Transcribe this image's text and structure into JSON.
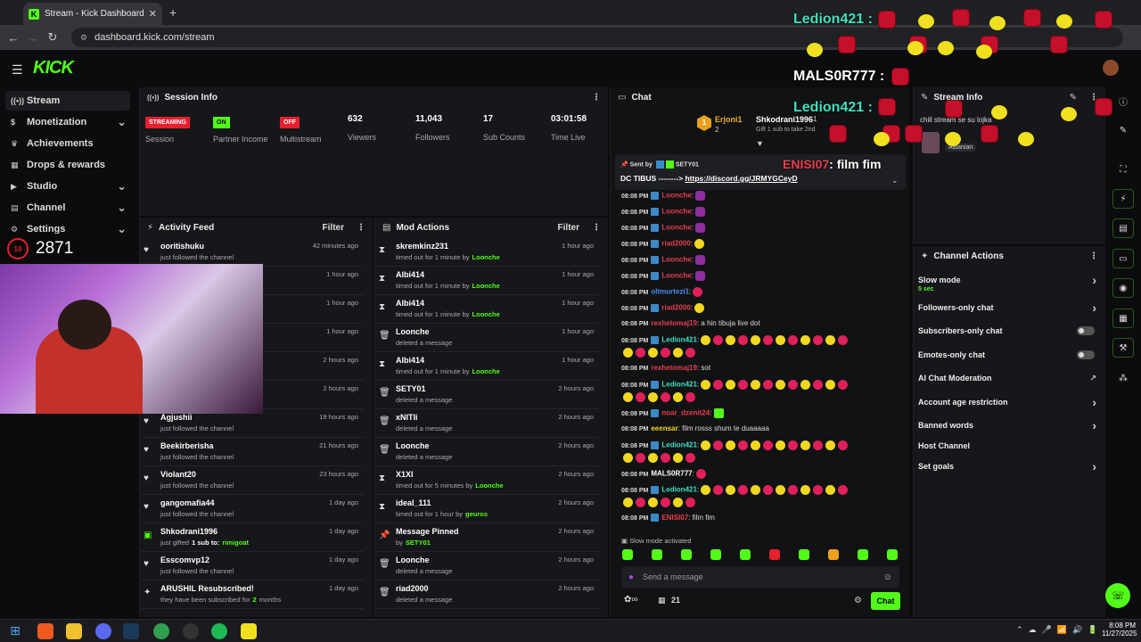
{
  "browser": {
    "tab_title": "Stream - Kick Dashboard",
    "url": "dashboard.kick.com/stream"
  },
  "header": {
    "logo": "KICK"
  },
  "sidebar": {
    "items": [
      {
        "label": "Stream",
        "icon": "broadcast-icon",
        "active": true
      },
      {
        "label": "Monetization",
        "icon": "dollar-icon",
        "chevron": true
      },
      {
        "label": "Achievements",
        "icon": "trophy-icon"
      },
      {
        "label": "Drops & rewards",
        "icon": "gift-icon"
      },
      {
        "label": "Studio",
        "icon": "video-icon",
        "chevron": true
      },
      {
        "label": "Channel",
        "icon": "channel-icon",
        "chevron": true
      },
      {
        "label": "Settings",
        "icon": "gear-icon",
        "chevron": true
      }
    ]
  },
  "viewer_overlay": {
    "count": "2871",
    "badge": "10"
  },
  "session_info": {
    "title": "Session Info",
    "stats": [
      {
        "badge": "STREAMING",
        "badge_color": "#e6202e",
        "label": "Session"
      },
      {
        "badge": "ON",
        "badge_color": "#53fc18",
        "label": "Partner Income"
      },
      {
        "badge": "OFF",
        "badge_color": "#e6202e",
        "label": "Multistream"
      },
      {
        "value": "632",
        "label": "Viewers"
      },
      {
        "value": "11,043",
        "label": "Followers"
      },
      {
        "value": "17",
        "label": "Sub Counts"
      },
      {
        "value": "03:01:58",
        "label": "Time Live"
      }
    ]
  },
  "activity_feed": {
    "title": "Activity Feed",
    "filter": "Filter",
    "rows": [
      {
        "name": "ooritishuku",
        "sub": "just followed the channel",
        "time": "42 minutes ago",
        "icon": "heart-icon"
      },
      {
        "name": "",
        "sub": "",
        "time": "1 hour ago",
        "icon": "heart-icon"
      },
      {
        "name": "",
        "sub": "",
        "time": "1 hour ago",
        "icon": "heart-icon"
      },
      {
        "name": "",
        "sub": "",
        "time": "1 hour ago",
        "icon": "heart-icon"
      },
      {
        "name": "",
        "sub": "",
        "time": "2 hours ago",
        "icon": "heart-icon"
      },
      {
        "name": "",
        "sub": "",
        "time": "2 hours ago",
        "icon": "heart-icon"
      },
      {
        "name": "Agjushii",
        "sub": "just followed the channel",
        "time": "19 hours ago",
        "icon": "heart-icon"
      },
      {
        "name": "Beekirberisha",
        "sub": "just followed the channel",
        "time": "21 hours ago",
        "icon": "heart-icon"
      },
      {
        "name": "Violant20",
        "sub": "just followed the channel",
        "time": "23 hours ago",
        "icon": "heart-icon"
      },
      {
        "name": "gangomafia44",
        "sub": "just followed the channel",
        "time": "1 day ago",
        "icon": "heart-icon"
      },
      {
        "name": "Shkodrani1996",
        "sub": "just gifted",
        "sub_extra": "1 sub to:",
        "sub_target": "rimigoat",
        "time": "1 day ago",
        "icon": "gift-icon"
      },
      {
        "name": "Esscomvp12",
        "sub": "just followed the channel",
        "time": "1 day ago",
        "icon": "heart-icon"
      },
      {
        "name": "ARUSHIL Resubscribed!",
        "sub": "they have been subscribed for",
        "sub_extra": "2",
        "sub_tail": "months",
        "time": "1 day ago",
        "icon": "sparkle-icon"
      }
    ]
  },
  "mod_actions": {
    "title": "Mod Actions",
    "filter": "Filter",
    "rows": [
      {
        "name": "skremkinz231",
        "sub": "timed out for 1 minute by",
        "by": "Loonche",
        "time": "1 hour ago",
        "icon": "hourglass-icon"
      },
      {
        "name": "Albi414",
        "sub": "timed out for 1 minute by",
        "by": "Loonche",
        "time": "1 hour ago",
        "icon": "hourglass-icon"
      },
      {
        "name": "Albi414",
        "sub": "timed out for 1 minute by",
        "by": "Loonche",
        "time": "1 hour ago",
        "icon": "hourglass-icon"
      },
      {
        "name": "Loonche",
        "sub": "deleted a message",
        "by": "",
        "time": "1 hour ago",
        "icon": "trash-icon"
      },
      {
        "name": "Albi414",
        "sub": "timed out for 1 minute by",
        "by": "Loonche",
        "time": "1 hour ago",
        "icon": "hourglass-icon"
      },
      {
        "name": "SETY01",
        "sub": "deleted a message",
        "by": "",
        "time": "2 hours ago",
        "icon": "trash-icon"
      },
      {
        "name": "xNITIi",
        "sub": "deleted a message",
        "by": "",
        "time": "2 hours ago",
        "icon": "trash-icon"
      },
      {
        "name": "Loonche",
        "sub": "deleted a message",
        "by": "",
        "time": "2 hours ago",
        "icon": "trash-icon"
      },
      {
        "name": "X1XI",
        "sub": "timed out for 5 minutes by",
        "by": "Loonche",
        "time": "2 hours ago",
        "icon": "hourglass-icon"
      },
      {
        "name": "ideal_111",
        "sub": "timed out for 1 hour by",
        "by": "geuros",
        "time": "2 hours ago",
        "icon": "hourglass-icon"
      },
      {
        "name": "Message Pinned",
        "sub": "by",
        "by": "SETY01",
        "time": "2 hours ago",
        "icon": "pin-icon"
      },
      {
        "name": "Loonche",
        "sub": "deleted a message",
        "by": "",
        "time": "2 hours ago",
        "icon": "trash-icon"
      },
      {
        "name": "riad2000",
        "sub": "deleted a message",
        "by": "",
        "time": "2 hours ago",
        "icon": "trash-icon"
      }
    ]
  },
  "chat": {
    "title": "Chat",
    "top_gifter": {
      "rank1": "Erjoni1",
      "rank1_count": "2",
      "rank2": "Shkodrani1996",
      "rank2_count": "1",
      "gift_note": "Gift 1 sub to take 2nd"
    },
    "pinned": {
      "sent_by_label": "Sent by",
      "sender": "SETY01",
      "text": "DC TIBUS -------->",
      "link": "https://discord.gg/JRMYGCeyD"
    },
    "messages": [
      {
        "time": "08:08 PM",
        "user": "Loonche",
        "color": "#e83e4e",
        "text": ""
      },
      {
        "time": "08:08 PM",
        "user": "Loonche",
        "color": "#e83e4e",
        "text": ""
      },
      {
        "time": "08:08 PM",
        "user": "Loonche",
        "color": "#e83e4e",
        "text": ""
      },
      {
        "time": "08:08 PM",
        "user": "riad2000",
        "color": "#e83e4e",
        "text": ""
      },
      {
        "time": "08:08 PM",
        "user": "Loonche",
        "color": "#e83e4e",
        "text": ""
      },
      {
        "time": "08:08 PM",
        "user": "Loonche",
        "color": "#e83e4e",
        "text": ""
      },
      {
        "time": "08:08 PM",
        "user": "oltmurtezi1",
        "color": "#4a8ef0",
        "text": ""
      },
      {
        "time": "08:08 PM",
        "user": "riad2000",
        "color": "#e83e4e",
        "text": ""
      },
      {
        "time": "08:08 PM",
        "user": "rexhetomaj19",
        "color": "#e83e4e",
        "text": "a hin tibuja live dot"
      },
      {
        "time": "08:08 PM",
        "user": "Ledion421",
        "color": "#3fe0c0",
        "text": ""
      },
      {
        "time": "08:08 PM",
        "user": "rexhetomaj19",
        "color": "#e83e4e",
        "text": "sot"
      },
      {
        "time": "08:08 PM",
        "user": "Ledion421",
        "color": "#3fe0c0",
        "text": ""
      },
      {
        "time": "08:08 PM",
        "user": "noar_dzenit24",
        "color": "#e83e4e",
        "text": ""
      },
      {
        "time": "08:08 PM",
        "user": "eeensar",
        "color": "#f0d820",
        "text": "film rosss shum te duaaaaa"
      },
      {
        "time": "08:08 PM",
        "user": "Ledion421",
        "color": "#3fe0c0",
        "text": ""
      },
      {
        "time": "08:08 PM",
        "user": "MALS0R777",
        "color": "#ffffff",
        "text": ""
      },
      {
        "time": "08:08 PM",
        "user": "Ledion421",
        "color": "#3fe0c0",
        "text": ""
      },
      {
        "time": "08:08 PM",
        "user": "ENISI07",
        "color": "#e83e4e",
        "text": "film fim"
      }
    ],
    "slow_mode_note": "Slow mode activated",
    "input_placeholder": "Send a message",
    "viewer_count": "21",
    "send_label": "Chat",
    "pinned_overlay_user": "ENISI07",
    "pinned_overlay_text": ": film fim"
  },
  "stream_info": {
    "title": "Stream Info",
    "text": "chill stream se su lojka",
    "tag": "Albanian"
  },
  "channel_actions": {
    "title": "Channel Actions",
    "items": [
      {
        "label": "Slow mode",
        "sub": "5 sec",
        "control": "chevron"
      },
      {
        "label": "Followers-only chat",
        "control": "chevron"
      },
      {
        "label": "Subscribers-only chat",
        "control": "toggle"
      },
      {
        "label": "Emotes-only chat",
        "control": "toggle"
      },
      {
        "label": "AI Chat Moderation",
        "control": "external"
      },
      {
        "label": "Account age restriction",
        "control": "chevron"
      },
      {
        "label": "Banned words",
        "control": "chevron"
      },
      {
        "label": "Host Channel",
        "control": "none"
      },
      {
        "label": "Set goals",
        "control": "chevron"
      }
    ]
  },
  "overlay_names": [
    "Ledion421 :",
    "MALS0R777 :",
    "Ledion421 :"
  ],
  "taskbar": {
    "time": "8:08 PM",
    "date": "11/27/2025"
  },
  "colors": {
    "accent": "#53fc18",
    "bg": "#0b0c0e",
    "panel": "#16171a",
    "red": "#e6202e"
  }
}
